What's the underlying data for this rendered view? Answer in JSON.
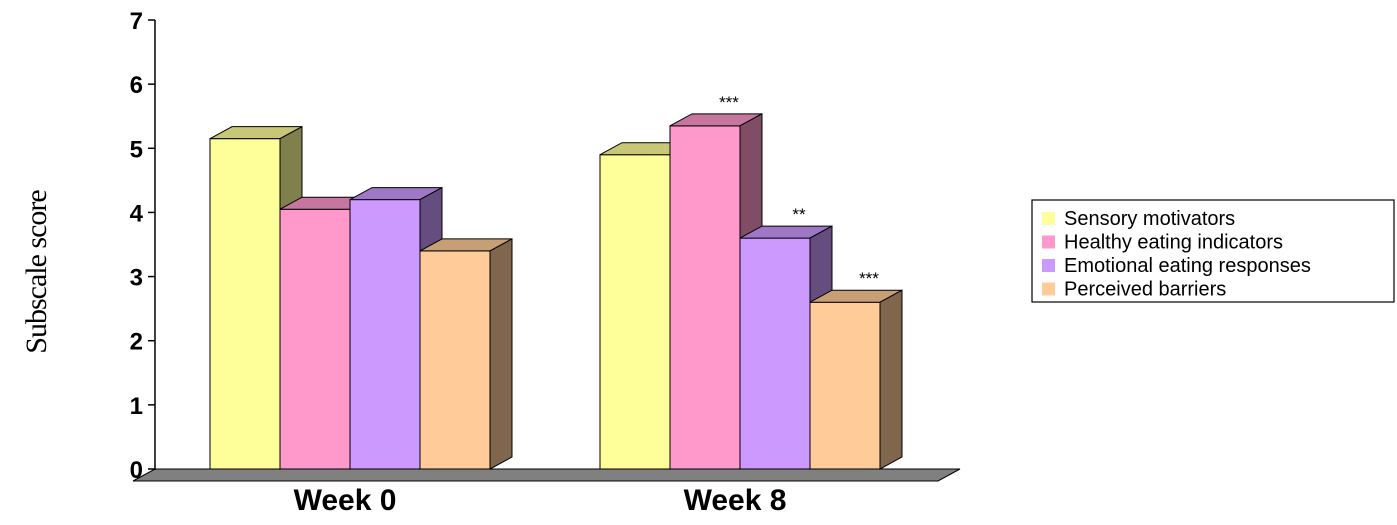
{
  "chart_data": {
    "type": "bar",
    "title": "",
    "xlabel": "",
    "ylabel": "Subscale score",
    "ylim": [
      0,
      7
    ],
    "yticks": [
      "0",
      "1",
      "2",
      "3",
      "4",
      "5",
      "6",
      "7"
    ],
    "grid": false,
    "legend_position": "right",
    "style": "3d",
    "categories": [
      "Week 0",
      "Week 8"
    ],
    "series": [
      {
        "name": "Sensory motivators",
        "values": [
          5.15,
          4.9
        ],
        "color": "#ffff99",
        "significance": [
          "",
          ""
        ]
      },
      {
        "name": "Healthy eating indicators",
        "values": [
          4.05,
          5.35
        ],
        "color": "#ff99cc",
        "significance": [
          "",
          "***"
        ]
      },
      {
        "name": "Emotional eating responses",
        "values": [
          4.2,
          3.6
        ],
        "color": "#cc99ff",
        "significance": [
          "",
          "**"
        ]
      },
      {
        "name": "Perceived barriers",
        "values": [
          3.4,
          2.6
        ],
        "color": "#ffcc99",
        "significance": [
          "",
          "***"
        ]
      }
    ]
  }
}
